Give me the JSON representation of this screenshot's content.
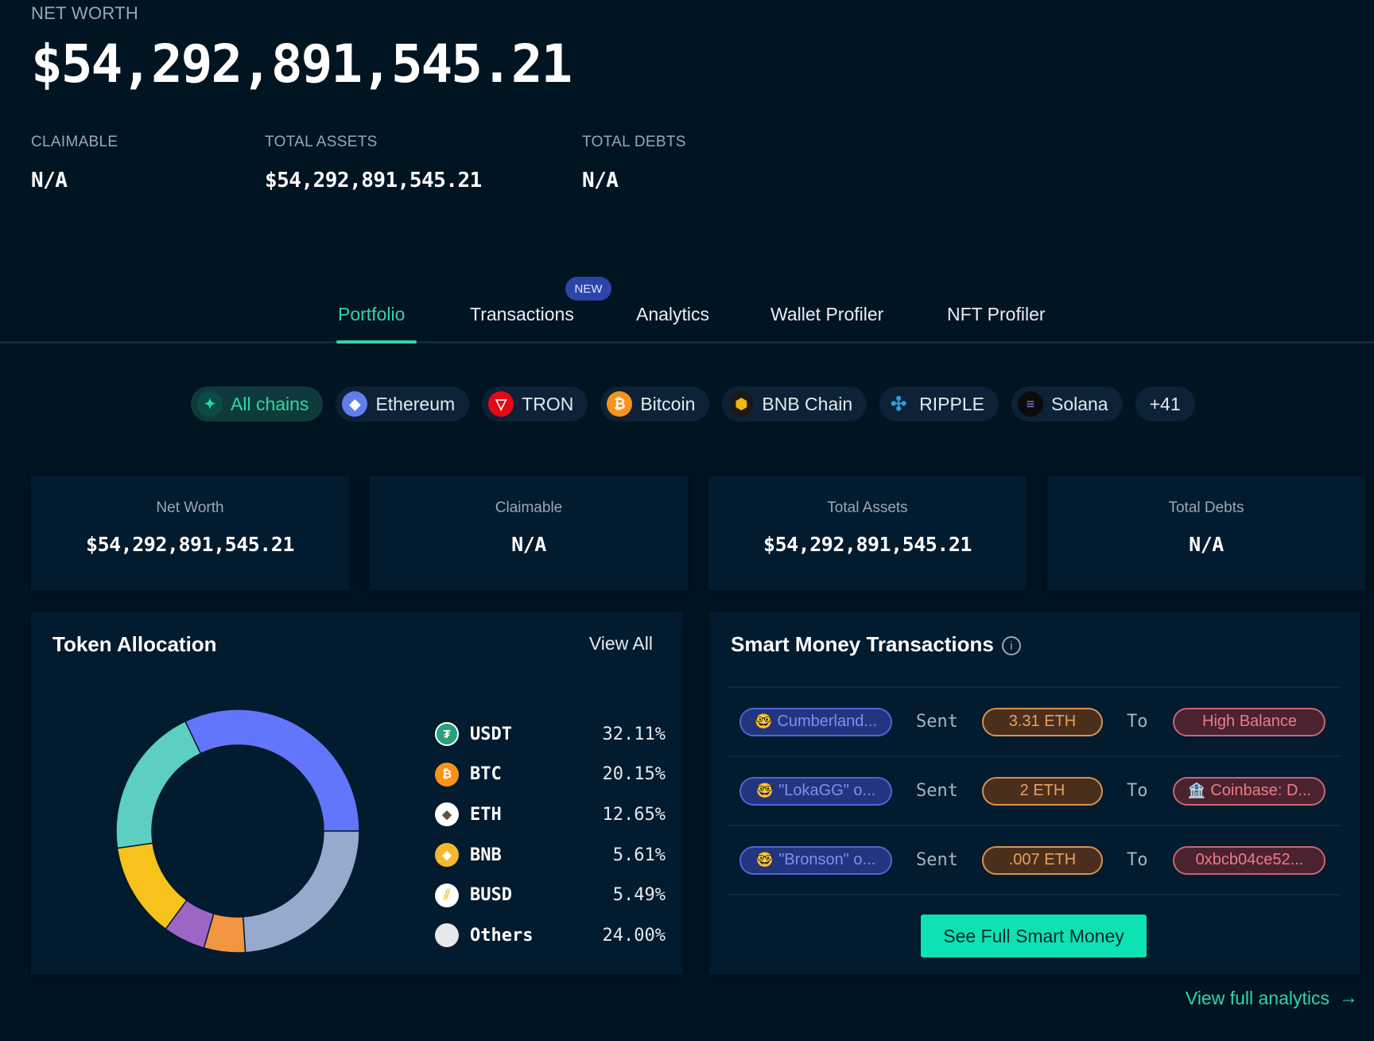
{
  "hero": {
    "label": "NET WORTH",
    "value": "$54,292,891,545.21",
    "stats": [
      {
        "label": "CLAIMABLE",
        "value": "N/A"
      },
      {
        "label": "TOTAL ASSETS",
        "value": "$54,292,891,545.21"
      },
      {
        "label": "TOTAL DEBTS",
        "value": "N/A"
      }
    ]
  },
  "tabs": {
    "items": [
      {
        "label": "Portfolio",
        "active": true
      },
      {
        "label": "Transactions"
      },
      {
        "label": "Analytics"
      },
      {
        "label": "Wallet Profiler"
      },
      {
        "label": "NFT Profiler"
      }
    ],
    "new_badge": "NEW"
  },
  "chains": {
    "items": [
      {
        "label": "All chains",
        "icon": "sparkle-icon",
        "color": "#2ed6a9",
        "active": true
      },
      {
        "label": "Ethereum",
        "icon": "ethereum-icon",
        "color": "#627eea"
      },
      {
        "label": "TRON",
        "icon": "tron-icon",
        "color": "#e50915"
      },
      {
        "label": "Bitcoin",
        "icon": "bitcoin-icon",
        "color": "#f7931a"
      },
      {
        "label": "BNB Chain",
        "icon": "bnb-chain-icon",
        "color": "#f0b90b"
      },
      {
        "label": "RIPPLE",
        "icon": "ripple-icon",
        "color": "#2a9fd8"
      },
      {
        "label": "Solana",
        "icon": "solana-icon",
        "color": "#9945ff"
      }
    ],
    "more": "+41"
  },
  "cards": [
    {
      "label": "Net Worth",
      "value": "$54,292,891,545.21"
    },
    {
      "label": "Claimable",
      "value": "N/A"
    },
    {
      "label": "Total Assets",
      "value": "$54,292,891,545.21"
    },
    {
      "label": "Total Debts",
      "value": "N/A"
    }
  ],
  "token_allocation": {
    "title": "Token Allocation",
    "view_all": "View All",
    "tokens": [
      {
        "symbol": "USDT",
        "pct": "32.11%",
        "icon_color": "#26a17b",
        "glyph": "₮"
      },
      {
        "symbol": "BTC",
        "pct": "20.15%",
        "icon_color": "#f7931a",
        "glyph": "₿"
      },
      {
        "symbol": "ETH",
        "pct": "12.65%",
        "icon_color": "#ffffff",
        "glyph": "◆"
      },
      {
        "symbol": "BNB",
        "pct": "5.61%",
        "icon_color": "#f3ba2f",
        "glyph": "◈"
      },
      {
        "symbol": "BUSD",
        "pct": "5.49%",
        "icon_color": "#f0c94a",
        "glyph": "⫽"
      },
      {
        "symbol": "Others",
        "pct": "24.00%",
        "icon_color": "#e6e8ea",
        "glyph": ""
      }
    ]
  },
  "chart_data": {
    "type": "pie",
    "title": "Token Allocation",
    "categories": [
      "USDT",
      "BTC",
      "ETH",
      "BNB",
      "BUSD",
      "Others"
    ],
    "values": [
      32.11,
      20.15,
      12.65,
      5.61,
      5.49,
      24.0
    ],
    "colors": [
      "#6176fb",
      "#5ccfc1",
      "#f8c21c",
      "#9b66c6",
      "#f29540",
      "#97a9cc"
    ],
    "donut": true,
    "legend_position": "right"
  },
  "smart_money": {
    "title": "Smart Money Transactions",
    "rows": [
      {
        "from": "Cumberland...",
        "verb": "Sent",
        "amount": "3.31 ETH",
        "to_word": "To",
        "to": "High Balance",
        "to_emoji": ""
      },
      {
        "from": "\"LokaGG\" o...",
        "verb": "Sent",
        "amount": "2 ETH",
        "to_word": "To",
        "to": "Coinbase: D...",
        "to_emoji": "🏦"
      },
      {
        "from": "\"Bronson\" o...",
        "verb": "Sent",
        "amount": ".007 ETH",
        "to_word": "To",
        "to": "0xbcb04ce52...",
        "to_emoji": ""
      }
    ],
    "from_emoji": "🤓",
    "button": "See Full Smart Money"
  },
  "footer": {
    "view_full": "View full analytics",
    "arrow": "→"
  }
}
